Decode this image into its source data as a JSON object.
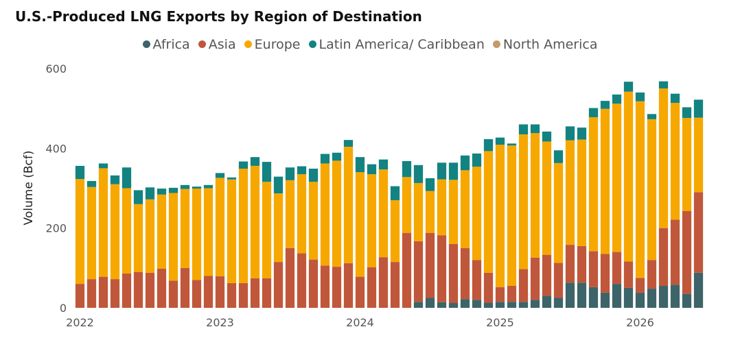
{
  "chart_data": {
    "type": "bar",
    "stacked": true,
    "title": "U.S.-Produced LNG Exports by Region of Destination",
    "ylabel": "Volume (Bcf)",
    "xlabel": "",
    "ylim": [
      0,
      600
    ],
    "yticks": [
      "0",
      "200",
      "400",
      "600"
    ],
    "xticks": [
      "2022",
      "2023",
      "2024",
      "2025",
      "2026"
    ],
    "grid": false,
    "legend_position": "top",
    "colors": {
      "Africa": "#3d6469",
      "Asia": "#c0573b",
      "Europe": "#f6a800",
      "Latin America/ Caribbean": "#138381",
      "North America": "#c69a6d"
    },
    "series_order": [
      "Africa",
      "Asia",
      "Europe",
      "Latin America/ Caribbean",
      "North America"
    ],
    "categories": [
      "2022-01",
      "2022-02",
      "2022-03",
      "2022-04",
      "2022-05",
      "2022-06",
      "2022-07",
      "2022-08",
      "2022-09",
      "2022-10",
      "2022-11",
      "2022-12",
      "2023-01",
      "2023-02",
      "2023-03",
      "2023-04",
      "2023-05",
      "2023-06",
      "2023-07",
      "2023-08",
      "2023-09",
      "2023-10",
      "2023-11",
      "2023-12",
      "2024-01",
      "2024-02",
      "2024-03",
      "2024-04",
      "2024-05",
      "2024-06",
      "2024-07",
      "2024-08",
      "2024-09",
      "2024-10",
      "2024-11",
      "2024-12",
      "2025-01",
      "2025-02",
      "2025-03",
      "2025-04",
      "2025-05",
      "2025-06",
      "2025-07",
      "2025-08",
      "2025-09",
      "2025-10",
      "2025-11",
      "2025-12",
      "2026-01",
      "2026-02",
      "2026-03",
      "2026-04",
      "2026-05",
      "2026-06"
    ],
    "series": [
      {
        "name": "Africa",
        "values": [
          0,
          0,
          0,
          0,
          0,
          0,
          0,
          0,
          0,
          0,
          0,
          0,
          0,
          0,
          0,
          0,
          0,
          0,
          0,
          0,
          0,
          0,
          0,
          0,
          0,
          0,
          0,
          0,
          0,
          15,
          25,
          14,
          12,
          22,
          20,
          13,
          15,
          15,
          15,
          20,
          30,
          25,
          63,
          63,
          52,
          38,
          60,
          50,
          38,
          48,
          55,
          58,
          35,
          88
        ]
      },
      {
        "name": "Asia",
        "values": [
          60,
          72,
          78,
          72,
          86,
          90,
          88,
          98,
          68,
          100,
          70,
          80,
          79,
          62,
          62,
          74,
          74,
          115,
          150,
          137,
          121,
          106,
          103,
          112,
          78,
          102,
          127,
          115,
          188,
          152,
          163,
          168,
          148,
          128,
          100,
          75,
          37,
          40,
          82,
          106,
          103,
          88,
          95,
          92,
          90,
          97,
          80,
          66,
          37,
          72,
          145,
          163,
          208,
          202
        ]
      },
      {
        "name": "Europe",
        "values": [
          263,
          231,
          272,
          238,
          214,
          170,
          184,
          186,
          220,
          198,
          229,
          220,
          247,
          260,
          287,
          282,
          242,
          172,
          170,
          198,
          195,
          256,
          266,
          292,
          262,
          233,
          220,
          155,
          140,
          146,
          105,
          140,
          161,
          195,
          234,
          305,
          357,
          352,
          338,
          312,
          284,
          250,
          262,
          267,
          336,
          364,
          372,
          426,
          443,
          353,
          350,
          293,
          233,
          187
        ]
      },
      {
        "name": "Latin America/ Caribbean",
        "values": [
          33,
          15,
          12,
          22,
          52,
          35,
          30,
          15,
          13,
          10,
          5,
          8,
          12,
          5,
          18,
          22,
          50,
          42,
          32,
          20,
          33,
          24,
          20,
          17,
          38,
          25,
          25,
          35,
          40,
          45,
          32,
          42,
          43,
          37,
          33,
          30,
          18,
          5,
          25,
          22,
          25,
          32,
          35,
          30,
          23,
          20,
          23,
          25,
          22,
          13,
          18,
          23,
          27,
          45
        ]
      },
      {
        "name": "North America",
        "values": [
          0,
          0,
          0,
          0,
          0,
          0,
          0,
          0,
          0,
          0,
          0,
          0,
          0,
          0,
          0,
          0,
          0,
          0,
          0,
          0,
          0,
          0,
          0,
          0,
          0,
          0,
          0,
          0,
          0,
          0,
          0,
          0,
          0,
          0,
          0,
          0,
          0,
          0,
          0,
          0,
          0,
          0,
          0,
          0,
          0,
          0,
          0,
          0,
          0,
          0,
          0,
          0,
          0,
          0
        ]
      }
    ]
  }
}
